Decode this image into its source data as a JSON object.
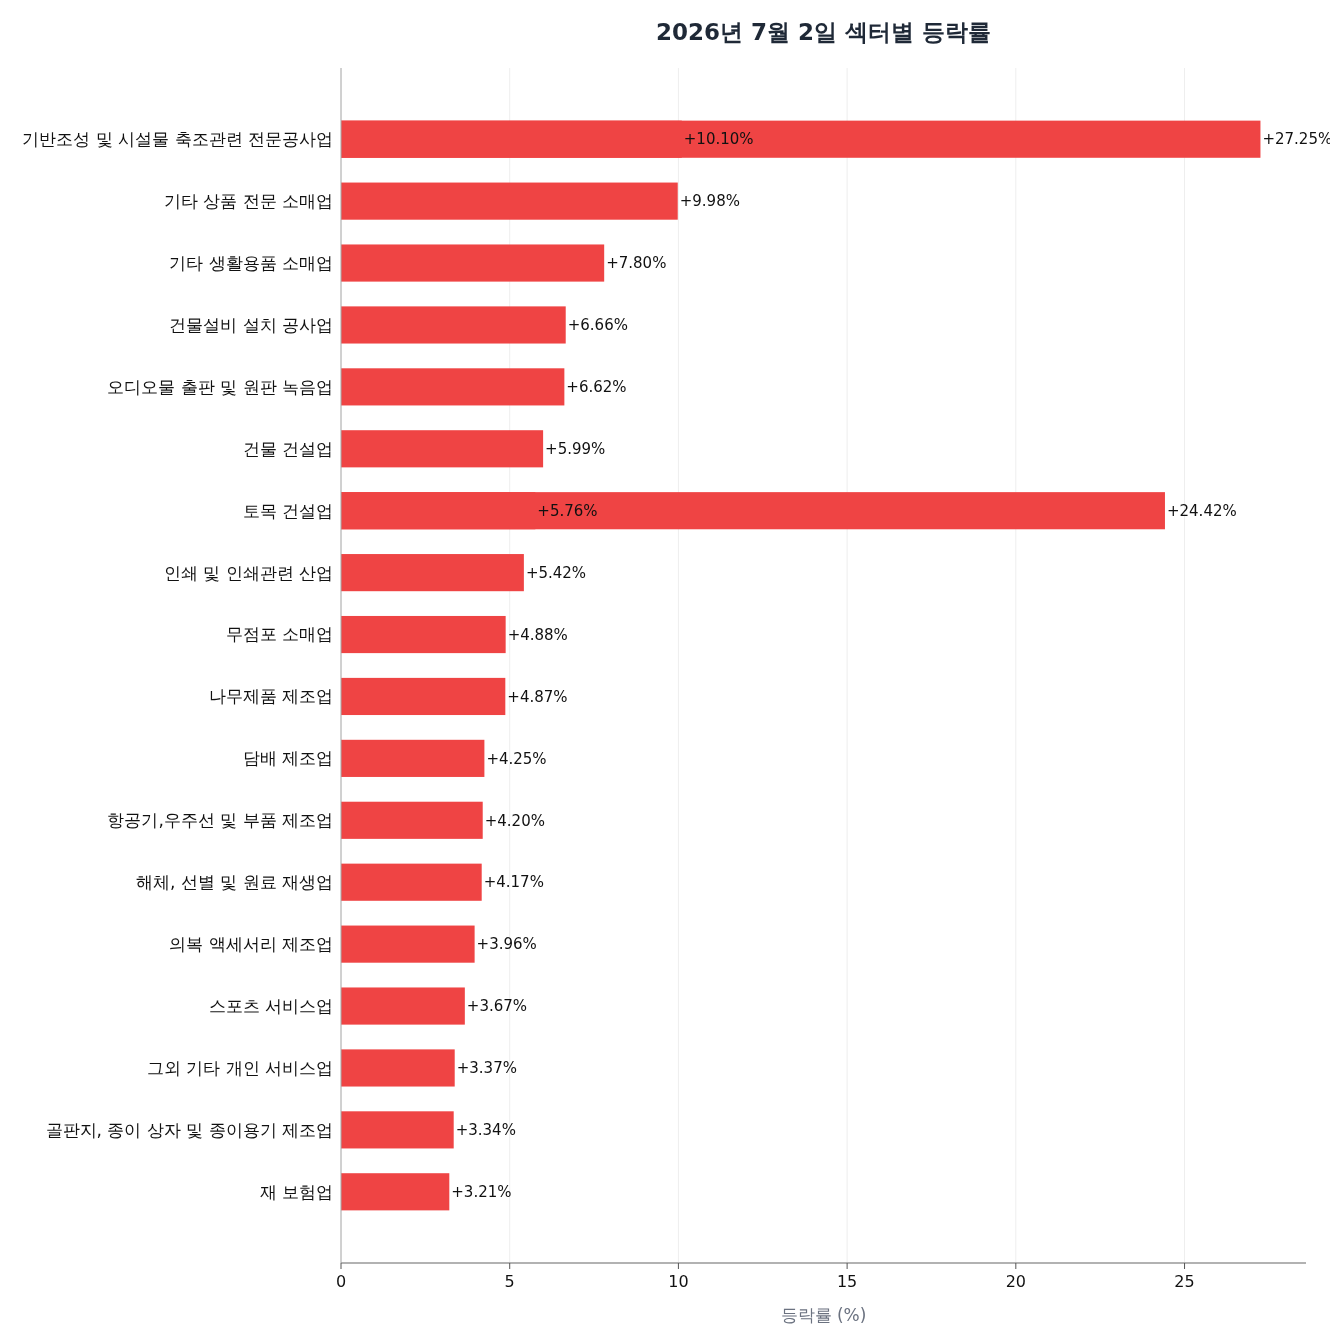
{
  "chart_data": {
    "type": "bar",
    "orientation": "horizontal",
    "title": "2026년 7월 2일 섹터별 등락률",
    "xlabel": "등락률 (%)",
    "categories": [
      "기반조성 및 시설물 축조관련 전문공사업",
      "기타 상품 전문 소매업",
      "기타 생활용품 소매업",
      "건물설비 설치 공사업",
      "오디오물 출판 및 원판 녹음업",
      "건물 건설업",
      "토목 건설업",
      "인쇄 및 인쇄관련 산업",
      "무점포 소매업",
      "나무제품 제조업",
      "담배 제조업",
      "항공기,우주선 및 부품 제조업",
      "해체, 선별 및 원료 재생업",
      "의복 액세서리 제조업",
      "스포츠 서비스업",
      "그외 기타 개인 서비스업",
      "골판지, 종이 상자 및 종이용기 제조업",
      "재 보험업"
    ],
    "series": [
      {
        "color": "#ef4444",
        "values": [
          10.1,
          9.98,
          7.8,
          6.66,
          6.62,
          5.99,
          5.76,
          5.42,
          4.88,
          4.87,
          4.25,
          4.2,
          4.17,
          3.96,
          3.67,
          3.37,
          3.34,
          3.21
        ],
        "value_labels": [
          "+10.10%",
          "+9.98%",
          "+7.80%",
          "+6.66%",
          "+6.62%",
          "+5.99%",
          "+5.76%",
          "+5.42%",
          "+4.88%",
          "+4.87%",
          "+4.25%",
          "+4.20%",
          "+4.17%",
          "+3.96%",
          "+3.67%",
          "+3.37%",
          "+3.34%",
          "+3.21%"
        ]
      },
      {
        "color": "#ef4444",
        "values": [
          27.25,
          null,
          null,
          null,
          null,
          null,
          24.42,
          null,
          null,
          null,
          null,
          null,
          null,
          null,
          null,
          null,
          null,
          null
        ],
        "value_labels": [
          "+27.25%",
          null,
          null,
          null,
          null,
          null,
          "+24.42%",
          null,
          null,
          null,
          null,
          null,
          null,
          null,
          null,
          null,
          null,
          null
        ]
      }
    ],
    "xlim": [
      0,
      28.6
    ],
    "xticks": [
      0,
      5,
      10,
      15,
      20,
      25
    ],
    "grid": "x"
  }
}
